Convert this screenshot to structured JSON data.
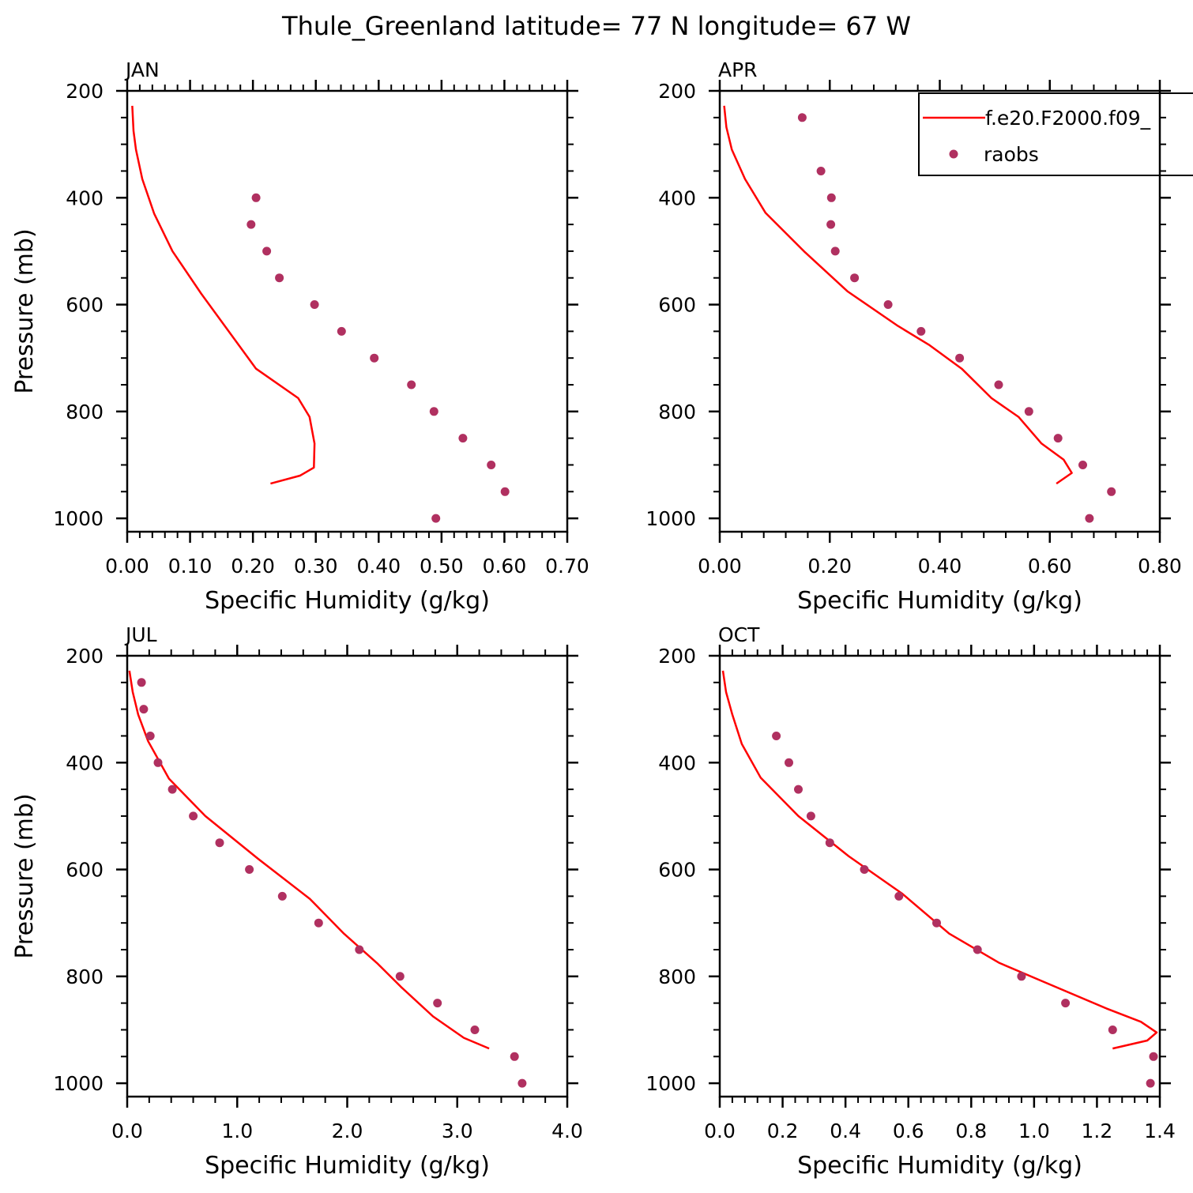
{
  "title": "Thule_Greenland  latitude= 77 N longitude= 67 W",
  "colors": {
    "model": "#ff0000",
    "obs": "#b03060",
    "axis": "#000000"
  },
  "legend": {
    "model_label": "f.e20.F2000.f09_",
    "obs_label": "raobs",
    "placement": "top-right of APR panel"
  },
  "chart_data": [
    {
      "type": "line",
      "title": "JAN",
      "xlabel": "Specific Humidity (g/kg)",
      "ylabel": "Pressure (mb)",
      "xlim": [
        0,
        0.7
      ],
      "ylim": [
        200,
        1025
      ],
      "xticks": [
        0,
        0.1,
        0.2,
        0.3,
        0.4,
        0.5,
        0.6,
        0.7
      ],
      "xtick_labels": [
        "0.00",
        "0.10",
        "0.20",
        "0.30",
        "0.40",
        "0.50",
        "0.60",
        "0.70"
      ],
      "yticks": [
        200,
        400,
        600,
        800,
        1000
      ],
      "ytick_labels": [
        "200",
        "400",
        "600",
        "800",
        "1000"
      ],
      "series": [
        {
          "name": "f.e20.F2000.f09_",
          "kind": "line",
          "x": [
            0.008,
            0.01,
            0.014,
            0.024,
            0.043,
            0.072,
            0.118,
            0.205,
            0.272,
            0.29,
            0.298,
            0.297,
            0.275,
            0.228
          ],
          "y": [
            228,
            275,
            310,
            365,
            430,
            500,
            580,
            720,
            775,
            810,
            860,
            905,
            920,
            935
          ]
        },
        {
          "name": "raobs",
          "kind": "scatter",
          "x": [
            0.205,
            0.197,
            0.222,
            0.242,
            0.298,
            0.341,
            0.393,
            0.452,
            0.488,
            0.534,
            0.579,
            0.601,
            0.491
          ],
          "y": [
            400,
            450,
            500,
            550,
            600,
            650,
            700,
            750,
            800,
            850,
            900,
            950,
            1000
          ]
        }
      ]
    },
    {
      "type": "line",
      "title": "APR",
      "xlabel": "Specific Humidity (g/kg)",
      "ylabel": "",
      "xlim": [
        0,
        0.8
      ],
      "ylim": [
        200,
        1025
      ],
      "xticks": [
        0,
        0.2,
        0.4,
        0.6,
        0.8
      ],
      "xtick_labels": [
        "0.00",
        "0.20",
        "0.40",
        "0.60",
        "0.80"
      ],
      "yticks": [
        200,
        400,
        600,
        800,
        1000
      ],
      "ytick_labels": [
        "200",
        "400",
        "600",
        "800",
        "1000"
      ],
      "series": [
        {
          "name": "f.e20.F2000.f09_",
          "kind": "line",
          "x": [
            0.008,
            0.012,
            0.022,
            0.046,
            0.083,
            0.153,
            0.232,
            0.324,
            0.38,
            0.44,
            0.494,
            0.543,
            0.585,
            0.625,
            0.64,
            0.612
          ],
          "y": [
            228,
            268,
            310,
            365,
            428,
            500,
            575,
            640,
            675,
            720,
            775,
            810,
            860,
            890,
            915,
            935
          ]
        },
        {
          "name": "raobs",
          "kind": "scatter",
          "x": [
            0.15,
            0.184,
            0.203,
            0.202,
            0.21,
            0.245,
            0.306,
            0.366,
            0.436,
            0.507,
            0.562,
            0.615,
            0.66,
            0.712,
            0.672
          ],
          "y": [
            250,
            350,
            400,
            450,
            500,
            550,
            600,
            650,
            700,
            750,
            800,
            850,
            900,
            950,
            1000
          ]
        }
      ]
    },
    {
      "type": "line",
      "title": "JUL",
      "xlabel": "Specific Humidity (g/kg)",
      "ylabel": "Pressure (mb)",
      "xlim": [
        0,
        4.0
      ],
      "ylim": [
        200,
        1025
      ],
      "xticks": [
        0,
        1,
        2,
        3,
        4
      ],
      "xtick_labels": [
        "0.0",
        "1.0",
        "2.0",
        "3.0",
        "4.0"
      ],
      "yticks": [
        200,
        400,
        600,
        800,
        1000
      ],
      "ytick_labels": [
        "200",
        "400",
        "600",
        "800",
        "1000"
      ],
      "series": [
        {
          "name": "f.e20.F2000.f09_",
          "kind": "line",
          "x": [
            0.02,
            0.05,
            0.1,
            0.19,
            0.38,
            0.71,
            1.19,
            1.66,
            1.97,
            2.27,
            2.49,
            2.78,
            3.06,
            3.29
          ],
          "y": [
            228,
            268,
            310,
            360,
            430,
            500,
            580,
            655,
            720,
            775,
            820,
            875,
            915,
            935
          ]
        },
        {
          "name": "raobs",
          "kind": "scatter",
          "x": [
            0.13,
            0.15,
            0.21,
            0.28,
            0.41,
            0.6,
            0.84,
            1.11,
            1.41,
            1.74,
            2.11,
            2.48,
            2.82,
            3.16,
            3.52,
            3.59
          ],
          "y": [
            250,
            300,
            350,
            400,
            450,
            500,
            550,
            600,
            650,
            700,
            750,
            800,
            850,
            900,
            950,
            1000
          ]
        }
      ]
    },
    {
      "type": "line",
      "title": "OCT",
      "xlabel": "Specific Humidity (g/kg)",
      "ylabel": "",
      "xlim": [
        0,
        1.4
      ],
      "ylim": [
        200,
        1025
      ],
      "xticks": [
        0,
        0.2,
        0.4,
        0.6,
        0.8,
        1.0,
        1.2,
        1.4
      ],
      "xtick_labels": [
        "0.0",
        "0.2",
        "0.4",
        "0.6",
        "0.8",
        "1.0",
        "1.2",
        "1.4"
      ],
      "yticks": [
        200,
        400,
        600,
        800,
        1000
      ],
      "ytick_labels": [
        "200",
        "400",
        "600",
        "800",
        "1000"
      ],
      "series": [
        {
          "name": "f.e20.F2000.f09_",
          "kind": "line",
          "x": [
            0.01,
            0.02,
            0.04,
            0.07,
            0.13,
            0.25,
            0.41,
            0.58,
            0.73,
            0.89,
            1.03,
            1.23,
            1.34,
            1.39,
            1.36,
            1.25
          ],
          "y": [
            228,
            268,
            310,
            365,
            428,
            500,
            575,
            645,
            720,
            775,
            810,
            860,
            885,
            905,
            920,
            935
          ]
        },
        {
          "name": "raobs",
          "kind": "scatter",
          "x": [
            0.18,
            0.22,
            0.25,
            0.29,
            0.35,
            0.46,
            0.57,
            0.69,
            0.82,
            0.96,
            1.1,
            1.25,
            1.38,
            1.37
          ],
          "y": [
            350,
            400,
            450,
            500,
            550,
            600,
            650,
            700,
            750,
            800,
            850,
            900,
            950,
            1000
          ]
        }
      ]
    }
  ]
}
